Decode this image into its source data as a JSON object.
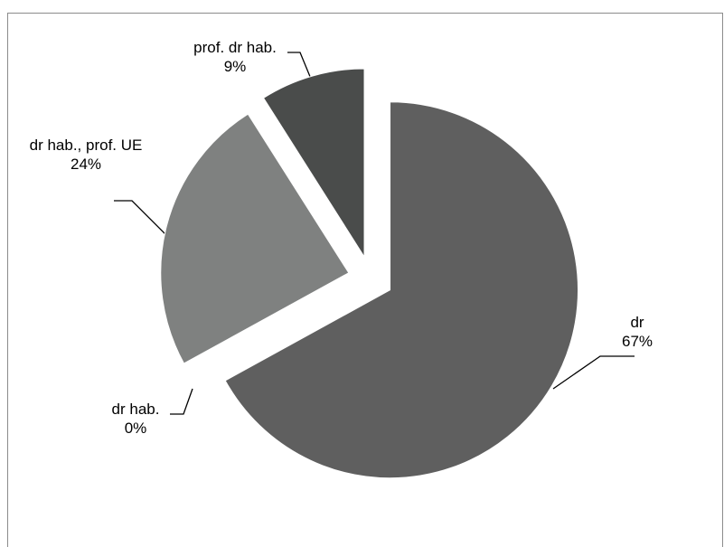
{
  "chart_data": {
    "type": "pie",
    "categories": [
      "dr",
      "dr hab.",
      "dr hab., prof. UE",
      "prof. dr hab."
    ],
    "values": [
      67,
      0,
      24,
      9
    ],
    "value_labels": [
      "67%",
      "0%",
      "24%",
      "9%"
    ],
    "colors": [
      "#5f5f5f",
      "#ffffff",
      "#7f8180",
      "#4a4c4b"
    ],
    "start_angle": 0,
    "direction": "clockwise",
    "exploded": true
  }
}
